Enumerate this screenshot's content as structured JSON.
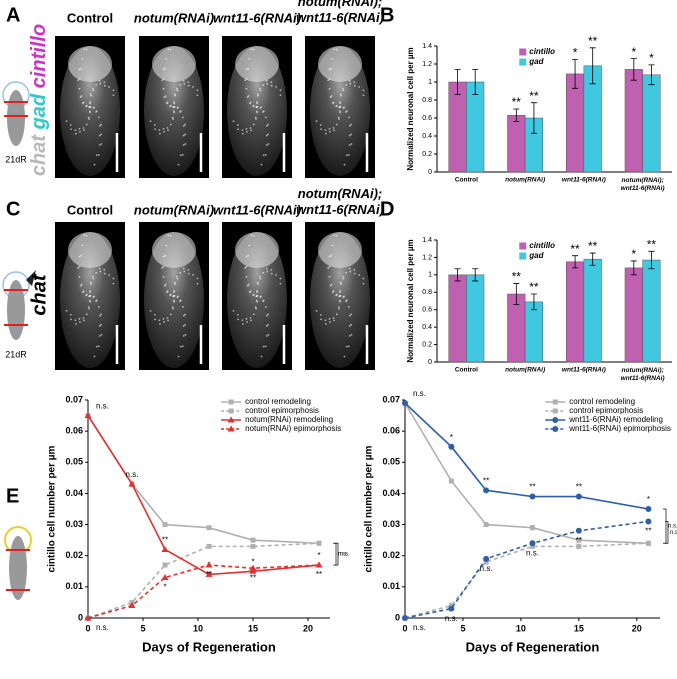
{
  "figure": {
    "panel_labels": [
      "A",
      "B",
      "C",
      "D",
      "E"
    ],
    "row_a": {
      "headers": [
        "Control",
        "notum(RNAi)",
        "wnt11-6(RNAi)",
        "notum(RNAi); wnt11-6(RNAi)"
      ],
      "stain_labels": [
        "chat",
        "gad",
        "cintillo"
      ],
      "stain_colors": [
        "#b8b8b8",
        "#30c8c8",
        "#d030c8"
      ],
      "timepoint": "21dR"
    },
    "row_c": {
      "headers": [
        "Control",
        "notum(RNAi)",
        "wnt11-6(RNAi)",
        "notum(RNAi); wnt11-6(RNAi)"
      ],
      "stain_label": "chat",
      "stain_color": "#b8b8b8",
      "timepoint": "21dR"
    }
  },
  "chart_data": [
    {
      "type": "bar",
      "ylabel": "Normalized neuronal cell per µm",
      "categories": [
        "Control",
        "notum(RNAi)",
        "wnt11-6(RNAi)",
        "notum(RNAi); wnt11-6(RNAi)"
      ],
      "series": [
        {
          "name": "cintillo",
          "color": "#c060b0",
          "values": [
            1,
            0.63,
            1.09,
            1.14
          ],
          "errors": [
            0.14,
            0.07,
            0.16,
            0.12
          ],
          "annotations": [
            null,
            "**",
            "*",
            "*"
          ]
        },
        {
          "name": "gad",
          "color": "#40c8e0",
          "values": [
            1,
            0.6,
            1.18,
            1.08
          ],
          "errors": [
            0.14,
            0.17,
            0.2,
            0.11
          ],
          "annotations": [
            null,
            "**",
            "**",
            "*"
          ]
        }
      ],
      "ylim": [
        0,
        1.4
      ],
      "yticks": [
        0,
        0.2,
        0.4,
        0.6,
        0.8,
        1,
        1.2,
        1.4
      ]
    },
    {
      "type": "bar",
      "ylabel": "Normalized neuronal cell per µm",
      "categories": [
        "Control",
        "notum(RNAi)",
        "wnt11-6(RNAi)",
        "notum(RNAi); wnt11-6(RNAi)"
      ],
      "series": [
        {
          "name": "cintillo",
          "color": "#c060b0",
          "values": [
            1,
            0.78,
            1.15,
            1.08
          ],
          "errors": [
            0.07,
            0.12,
            0.07,
            0.08
          ],
          "annotations": [
            null,
            "**",
            "**",
            "*"
          ]
        },
        {
          "name": "gad",
          "color": "#40c8e0",
          "values": [
            1,
            0.69,
            1.18,
            1.17
          ],
          "errors": [
            0.07,
            0.09,
            0.07,
            0.1
          ],
          "annotations": [
            null,
            "**",
            "**",
            "**"
          ]
        }
      ],
      "ylim": [
        0,
        1.4
      ],
      "yticks": [
        0,
        0.2,
        0.4,
        0.6,
        0.8,
        1,
        1.2,
        1.4
      ]
    },
    {
      "type": "line",
      "xlabel": "Days of Regeneration",
      "ylabel": "cintillo cell number per µm",
      "x": [
        0,
        4,
        7,
        11,
        15,
        21
      ],
      "series": [
        {
          "name": "control remodeling",
          "color": "#b0b0b0",
          "dashed": false,
          "marker": "square",
          "values": [
            0.065,
            0.043,
            0.03,
            0.029,
            0.025,
            0.024
          ]
        },
        {
          "name": "control epimorphosis",
          "color": "#b0b0b0",
          "dashed": true,
          "marker": "square",
          "values": [
            0,
            0.005,
            0.017,
            0.023,
            0.023,
            0.024
          ]
        },
        {
          "name": "notum(RNAi) remodeling",
          "color": "#e03030",
          "dashed": false,
          "marker": "triangle",
          "values": [
            0.065,
            0.043,
            0.022,
            0.014,
            0.015,
            0.017
          ],
          "annotations": [
            "n.s.",
            "n.s.",
            "**",
            "*",
            "*",
            "*"
          ]
        },
        {
          "name": "notum(RNAi) epimorphosis",
          "color": "#e03030",
          "dashed": true,
          "marker": "triangle",
          "values": [
            0,
            0.004,
            0.013,
            0.017,
            0.016,
            0.017
          ],
          "annotations": [
            "n.s.",
            null,
            "*",
            "**",
            "**",
            "**"
          ]
        }
      ],
      "bracket_labels": [
        "n.s.",
        "n.s."
      ],
      "xlim": [
        0,
        22
      ],
      "xticks": [
        0,
        5,
        10,
        15,
        20
      ],
      "ylim": [
        0,
        0.07
      ],
      "yticks": [
        0,
        0.01,
        0.02,
        0.03,
        0.04,
        0.05,
        0.06,
        0.07
      ]
    },
    {
      "type": "line",
      "xlabel": "Days of Regeneration",
      "ylabel": "cintillo cell number per µm",
      "x": [
        0,
        4,
        7,
        11,
        15,
        21
      ],
      "series": [
        {
          "name": "control remodeling",
          "color": "#b0b0b0",
          "dashed": false,
          "marker": "square",
          "values": [
            0.069,
            0.044,
            0.03,
            0.029,
            0.025,
            0.024
          ]
        },
        {
          "name": "control epimorphosis",
          "color": "#b0b0b0",
          "dashed": true,
          "marker": "square",
          "values": [
            0,
            0.004,
            0.018,
            0.023,
            0.023,
            0.024
          ]
        },
        {
          "name": "wnt11-6(RNAi) remodeling",
          "color": "#2f5ea8",
          "dashed": false,
          "marker": "circle",
          "values": [
            0.069,
            0.055,
            0.041,
            0.039,
            0.039,
            0.035
          ],
          "annotations": [
            "n.s.",
            "*",
            "**",
            "**",
            "**",
            "*"
          ]
        },
        {
          "name": "wnt11-6(RNAi) epimorphosis",
          "color": "#2f5ea8",
          "dashed": true,
          "marker": "circle",
          "values": [
            0,
            0.003,
            0.019,
            0.024,
            0.028,
            0.031
          ],
          "annotations": [
            "n.s.",
            "n.s.",
            "n.s.",
            "n.s.",
            "**",
            "**"
          ]
        }
      ],
      "bracket_labels": [
        "n.s.",
        "n.s."
      ],
      "xlim": [
        0,
        22
      ],
      "xticks": [
        0,
        5,
        10,
        15,
        20
      ],
      "ylim": [
        0,
        0.07
      ],
      "yticks": [
        0,
        0.01,
        0.02,
        0.03,
        0.04,
        0.05,
        0.06,
        0.07
      ]
    }
  ]
}
